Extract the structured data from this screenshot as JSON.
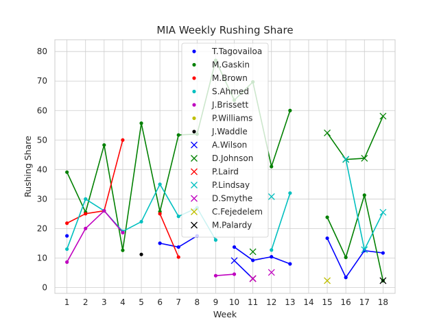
{
  "chart_data": {
    "type": "line",
    "title": "MIA Weekly Rushing Share",
    "xlabel": "Week",
    "ylabel": "Rushing Share",
    "xlim": [
      0.35,
      18.65
    ],
    "ylim": [
      -2,
      84
    ],
    "xticks": [
      1,
      2,
      3,
      4,
      5,
      6,
      7,
      8,
      9,
      10,
      11,
      12,
      13,
      14,
      15,
      16,
      17,
      18
    ],
    "yticks": [
      0,
      10,
      20,
      30,
      40,
      50,
      60,
      70,
      80
    ],
    "grid": true,
    "legend_position": "upper center",
    "series": [
      {
        "name": "T.Tagovailoa",
        "color": "#0000ff",
        "marker": "dot",
        "segments": [
          [
            [
              1,
              17.5
            ]
          ],
          [
            [
              6,
              15
            ],
            [
              7,
              13.7
            ],
            [
              8,
              17.5
            ]
          ],
          [
            [
              10,
              13.7
            ],
            [
              11,
              9.2
            ],
            [
              12,
              10.4
            ],
            [
              13,
              8
            ]
          ],
          [
            [
              15,
              16.7
            ],
            [
              16,
              3.4
            ],
            [
              17,
              12.5
            ],
            [
              18,
              11.7
            ]
          ]
        ]
      },
      {
        "name": "M.Gaskin",
        "color": "#008000",
        "marker": "dot",
        "segments": [
          [
            [
              1,
              39.1
            ],
            [
              2,
              25.5
            ],
            [
              3,
              48.3
            ],
            [
              4,
              12.6
            ],
            [
              5,
              55.7
            ],
            [
              6,
              25.7
            ],
            [
              7,
              51.7
            ],
            [
              8,
              52
            ],
            [
              9,
              77
            ],
            [
              10,
              63.5
            ],
            [
              11,
              69.7
            ],
            [
              12,
              41
            ],
            [
              13,
              60
            ]
          ],
          [
            [
              15,
              23.8
            ],
            [
              16,
              10.2
            ],
            [
              17,
              31.3
            ],
            [
              18,
              2.3
            ]
          ]
        ]
      },
      {
        "name": "M.Brown",
        "color": "#ff0000",
        "marker": "dot",
        "segments": [
          [
            [
              1,
              21.8
            ],
            [
              2,
              25
            ],
            [
              3,
              26
            ],
            [
              4,
              50
            ]
          ],
          [
            [
              6,
              25
            ],
            [
              7,
              10.3
            ]
          ]
        ]
      },
      {
        "name": "S.Ahmed",
        "color": "#00bfbf",
        "marker": "dot",
        "segments": [
          [
            [
              1,
              13
            ],
            [
              2,
              30
            ],
            [
              3,
              26
            ],
            [
              4,
              19
            ],
            [
              5,
              22.3
            ],
            [
              6,
              35
            ],
            [
              7,
              24.1
            ],
            [
              8,
              27
            ],
            [
              9,
              16.1
            ]
          ],
          [
            [
              12,
              12.7
            ],
            [
              13,
              32
            ]
          ]
        ]
      },
      {
        "name": "J.Brissett",
        "color": "#bf00bf",
        "marker": "dot",
        "segments": [
          [
            [
              1,
              8.6
            ],
            [
              2,
              20
            ],
            [
              3,
              26
            ],
            [
              4,
              18.6
            ]
          ],
          [
            [
              9,
              4
            ],
            [
              10,
              4.5
            ]
          ]
        ]
      },
      {
        "name": "P.Williams",
        "color": "#bfbf00",
        "marker": "dot",
        "segments": []
      },
      {
        "name": "J.Waddle",
        "color": "#000000",
        "marker": "dot",
        "segments": [
          [
            [
              5,
              11.2
            ]
          ]
        ]
      },
      {
        "name": "A.Wilson",
        "color": "#0000ff",
        "marker": "x",
        "segments": [
          [
            [
              10,
              9.1
            ],
            [
              11,
              3
            ]
          ]
        ]
      },
      {
        "name": "D.Johnson",
        "color": "#008000",
        "marker": "x",
        "segments": [
          [
            [
              11,
              12.1
            ]
          ],
          [
            [
              15,
              52.4
            ],
            [
              16,
              43.4
            ],
            [
              17,
              43.8
            ],
            [
              18,
              58.1
            ]
          ]
        ]
      },
      {
        "name": "P.Laird",
        "color": "#ff0000",
        "marker": "x",
        "segments": [
          [
            [
              11,
              3
            ]
          ]
        ]
      },
      {
        "name": "P.Lindsay",
        "color": "#00bfbf",
        "marker": "x",
        "segments": [
          [
            [
              12,
              30.8
            ]
          ],
          [
            [
              16,
              43.5
            ],
            [
              17,
              12.8
            ],
            [
              18,
              25.5
            ]
          ]
        ]
      },
      {
        "name": "D.Smythe",
        "color": "#bf00bf",
        "marker": "x",
        "segments": [
          [
            [
              11,
              3
            ]
          ],
          [
            [
              12,
              5.1
            ]
          ]
        ]
      },
      {
        "name": "C.Fejedelem",
        "color": "#bfbf00",
        "marker": "x",
        "segments": [
          [
            [
              15,
              2.3
            ]
          ]
        ]
      },
      {
        "name": "M.Palardy",
        "color": "#000000",
        "marker": "x",
        "segments": [
          [
            [
              18,
              2.3
            ]
          ]
        ]
      }
    ]
  }
}
